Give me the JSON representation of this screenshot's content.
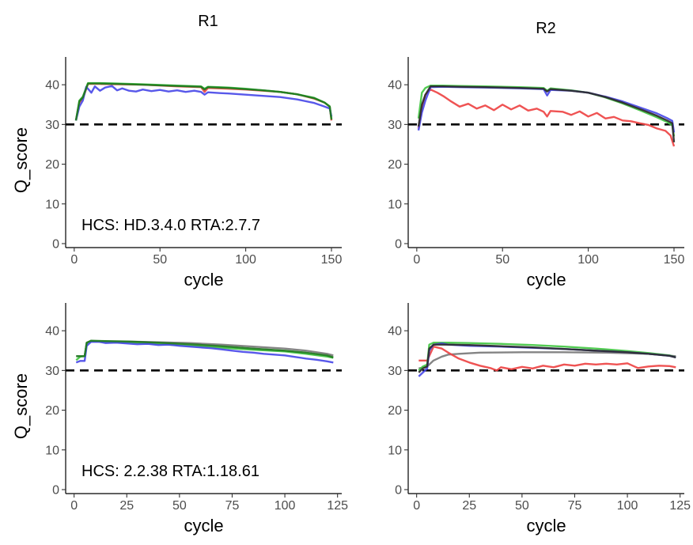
{
  "colors": {
    "A": "#ee4444",
    "C": "#4a4ae8",
    "G": "#2d2d2d",
    "T": "#43c743",
    "dark_green": "#1f7a1f",
    "gray": "#7a7a7a",
    "threshold": "#000000"
  },
  "column_titles": [
    "R1",
    "R2"
  ],
  "threshold": 30,
  "chart_data": [
    {
      "type": "line",
      "panel": "top-left",
      "title": "",
      "xlabel": "cycle",
      "ylabel": "Q_score",
      "xlim": [
        -5,
        156
      ],
      "ylim": [
        -1,
        47
      ],
      "xticks": [
        0,
        50,
        100,
        150
      ],
      "yticks": [
        0,
        10,
        20,
        30,
        40
      ],
      "annotation": "HCS: HD.3.4.0 RTA:2.7.7",
      "grid": false,
      "series": [
        {
          "color_key": "A",
          "x": [
            1,
            3,
            5,
            8,
            15,
            25,
            40,
            60,
            74,
            76,
            78,
            90,
            100,
            110,
            120,
            130,
            140,
            146,
            149,
            150
          ],
          "values": [
            31,
            35.5,
            36.5,
            40.2,
            40.2,
            40.1,
            40,
            39.6,
            39.4,
            38.2,
            39.2,
            39,
            38.8,
            38.5,
            38.2,
            37.6,
            36.5,
            35.5,
            34.5,
            31
          ]
        },
        {
          "color_key": "T",
          "x": [
            1,
            3,
            5,
            8,
            15,
            25,
            40,
            60,
            74,
            76,
            78,
            90,
            100,
            110,
            120,
            130,
            140,
            146,
            149,
            150
          ],
          "values": [
            31,
            36,
            37,
            40.4,
            40.4,
            40.3,
            40.1,
            39.8,
            39.6,
            39,
            39.5,
            39.3,
            39,
            38.6,
            38.2,
            37.6,
            36.7,
            35.5,
            34.6,
            31.5
          ]
        },
        {
          "color_key": "C",
          "x": [
            1,
            3,
            5,
            7,
            10,
            12,
            15,
            18,
            22,
            25,
            28,
            32,
            36,
            40,
            45,
            50,
            55,
            60,
            65,
            70,
            74,
            76,
            78,
            85,
            90,
            100,
            110,
            120,
            130,
            140,
            146,
            149,
            150
          ],
          "values": [
            31,
            34.5,
            36,
            39.5,
            38,
            39.6,
            38.5,
            39.3,
            39.7,
            38.6,
            39.1,
            38.5,
            38.3,
            38.8,
            38.4,
            38.7,
            38.3,
            38.6,
            38.2,
            38.5,
            38.2,
            37.5,
            38.1,
            37.9,
            37.8,
            37.5,
            37.2,
            36.9,
            36.3,
            35.4,
            34.5,
            34,
            32
          ]
        },
        {
          "color_key": "dark_green",
          "x": [
            1,
            3,
            5,
            8,
            15,
            25,
            40,
            60,
            74,
            76,
            78,
            90,
            100,
            110,
            120,
            130,
            140,
            146,
            149,
            150
          ],
          "values": [
            31,
            35.8,
            36.8,
            40.3,
            40.3,
            40.2,
            40,
            39.7,
            39.5,
            38.8,
            39.4,
            39.2,
            38.9,
            38.6,
            38.2,
            37.6,
            36.6,
            35.5,
            34.5,
            31.2
          ]
        }
      ]
    },
    {
      "type": "line",
      "panel": "top-right",
      "title": "",
      "xlabel": "cycle",
      "ylabel": "",
      "xlim": [
        -5,
        156
      ],
      "ylim": [
        -1,
        47
      ],
      "xticks": [
        0,
        50,
        100,
        150
      ],
      "yticks": [
        0,
        10,
        20,
        30,
        40
      ],
      "grid": false,
      "series": [
        {
          "color_key": "A",
          "x": [
            1,
            3,
            5,
            8,
            12,
            16,
            20,
            25,
            30,
            35,
            40,
            45,
            50,
            55,
            60,
            65,
            70,
            74,
            76,
            78,
            85,
            90,
            95,
            100,
            105,
            110,
            115,
            120,
            125,
            130,
            135,
            140,
            145,
            148,
            150
          ],
          "values": [
            29,
            34,
            37.5,
            38.8,
            38,
            37,
            35.8,
            34.5,
            35.2,
            34,
            34.8,
            33.6,
            35,
            33.8,
            34.8,
            33.5,
            34,
            33.2,
            32,
            33.4,
            33.2,
            32.4,
            33.3,
            32,
            32.9,
            31.5,
            31.9,
            31,
            30.8,
            30.3,
            29.9,
            29,
            28.4,
            27.2,
            24.5
          ]
        },
        {
          "color_key": "T",
          "x": [
            1,
            3,
            5,
            8,
            15,
            25,
            40,
            60,
            74,
            76,
            78,
            90,
            100,
            110,
            120,
            130,
            140,
            146,
            149,
            150
          ],
          "values": [
            31.5,
            38,
            39.2,
            39.8,
            39.8,
            39.7,
            39.6,
            39.4,
            39.2,
            38.5,
            39.1,
            38.6,
            38,
            36.8,
            35.3,
            33.6,
            31.8,
            30.6,
            29.8,
            27
          ]
        },
        {
          "color_key": "C",
          "x": [
            1,
            3,
            5,
            8,
            15,
            25,
            40,
            60,
            74,
            76,
            78,
            90,
            100,
            110,
            120,
            130,
            140,
            146,
            149,
            150
          ],
          "values": [
            28.5,
            33,
            36,
            39.4,
            39.5,
            39.4,
            39.3,
            39.1,
            38.9,
            37.3,
            38.7,
            38.5,
            38,
            37,
            35.8,
            34.3,
            32.8,
            31.6,
            30.9,
            28
          ]
        },
        {
          "color_key": "G",
          "x": [
            1,
            3,
            5,
            8,
            15,
            25,
            40,
            60,
            74,
            76,
            78,
            90,
            100,
            110,
            120,
            130,
            140,
            146,
            149,
            150
          ],
          "values": [
            29.5,
            35,
            37.5,
            39.6,
            39.6,
            39.5,
            39.4,
            39.2,
            39,
            38.3,
            38.9,
            38.5,
            38,
            36.9,
            35.5,
            33.9,
            32.2,
            31,
            30.3,
            25.5
          ]
        }
      ]
    },
    {
      "type": "line",
      "panel": "bottom-left",
      "title": "",
      "xlabel": "cycle",
      "ylabel": "Q_score",
      "xlim": [
        -4,
        127
      ],
      "ylim": [
        -1,
        47
      ],
      "xticks": [
        0,
        25,
        50,
        75,
        100,
        125
      ],
      "yticks": [
        0,
        10,
        20,
        30,
        40
      ],
      "annotation": "HCS: 2.2.38 RTA:1.18.61",
      "grid": false,
      "series": [
        {
          "color_key": "gray",
          "x": [
            1,
            3,
            5,
            6,
            8,
            15,
            25,
            40,
            55,
            70,
            85,
            100,
            110,
            120,
            123
          ],
          "values": [
            33.6,
            33.6,
            33.6,
            37,
            37.3,
            37.3,
            37.3,
            37.1,
            36.9,
            36.5,
            36,
            35.5,
            35,
            34.2,
            33.8
          ]
        },
        {
          "color_key": "T",
          "x": [
            1,
            3,
            5,
            6,
            8,
            15,
            25,
            40,
            55,
            70,
            85,
            100,
            110,
            120,
            123
          ],
          "values": [
            32.6,
            33.5,
            33.6,
            36.8,
            37.4,
            37.2,
            37,
            36.6,
            36.2,
            35.7,
            35.2,
            34.8,
            34.2,
            33.5,
            33.2
          ]
        },
        {
          "color_key": "C",
          "x": [
            1,
            3,
            5,
            6,
            8,
            12,
            15,
            20,
            25,
            30,
            35,
            40,
            45,
            50,
            55,
            60,
            65,
            70,
            75,
            80,
            85,
            90,
            95,
            100,
            105,
            110,
            115,
            120,
            123
          ],
          "values": [
            32,
            32.4,
            32.4,
            36.2,
            37.2,
            37.2,
            36.9,
            37,
            36.8,
            36.6,
            36.7,
            36.4,
            36.5,
            36.2,
            36,
            35.8,
            35.6,
            35.3,
            35,
            34.7,
            34.5,
            34.2,
            34,
            33.8,
            33.4,
            33,
            32.7,
            32.3,
            32
          ]
        },
        {
          "color_key": "dark_green",
          "x": [
            1,
            3,
            5,
            6,
            8,
            15,
            25,
            40,
            55,
            70,
            85,
            100,
            110,
            120,
            123
          ],
          "values": [
            33.6,
            33.6,
            33.6,
            37,
            37.5,
            37.4,
            37.3,
            37,
            36.6,
            36.1,
            35.5,
            35,
            34.5,
            33.8,
            33.3
          ]
        }
      ]
    },
    {
      "type": "line",
      "panel": "bottom-right",
      "title": "",
      "xlabel": "cycle",
      "ylabel": "",
      "xlim": [
        -4,
        127
      ],
      "ylim": [
        -1,
        47
      ],
      "xticks": [
        0,
        25,
        50,
        75,
        100,
        125
      ],
      "yticks": [
        0,
        10,
        20,
        30,
        40
      ],
      "grid": false,
      "series": [
        {
          "color_key": "gray",
          "x": [
            1,
            5,
            8,
            12,
            15,
            20,
            30,
            50,
            70,
            90,
            110,
            123
          ],
          "values": [
            30.5,
            31,
            32.5,
            33.5,
            34,
            34.2,
            34.5,
            34.6,
            34.6,
            34.5,
            34.2,
            33.6
          ]
        },
        {
          "color_key": "A",
          "x": [
            1,
            3,
            5,
            8,
            12,
            15,
            20,
            25,
            30,
            35,
            38,
            40,
            45,
            50,
            55,
            60,
            65,
            70,
            75,
            80,
            85,
            90,
            95,
            100,
            105,
            110,
            115,
            120,
            123
          ],
          "values": [
            32.5,
            32.5,
            32.5,
            36,
            35.5,
            34.5,
            33,
            32,
            31.2,
            30.6,
            30,
            30.8,
            30.3,
            30.9,
            30.5,
            31.2,
            30.8,
            31.5,
            31.2,
            31.7,
            31.5,
            31.7,
            31.5,
            31.8,
            30.6,
            31,
            31.2,
            31.1,
            30.8
          ]
        },
        {
          "color_key": "T",
          "x": [
            1,
            3,
            5,
            6,
            8,
            15,
            25,
            40,
            55,
            70,
            85,
            100,
            110,
            120,
            123
          ],
          "values": [
            30,
            31,
            31.5,
            36.5,
            37,
            37,
            36.9,
            36.7,
            36.4,
            36,
            35.5,
            34.9,
            34.4,
            33.8,
            33.3
          ]
        },
        {
          "color_key": "C",
          "x": [
            1,
            3,
            5,
            6,
            8,
            12,
            15,
            25,
            40,
            55,
            70,
            85,
            100,
            110,
            120,
            123
          ],
          "values": [
            28.5,
            29.5,
            30.5,
            35,
            36.5,
            36.8,
            36.5,
            36.2,
            36,
            35.7,
            35.4,
            35,
            34.6,
            34.2,
            33.7,
            33.3
          ]
        },
        {
          "color_key": "G",
          "x": [
            1,
            3,
            5,
            6,
            8,
            15,
            25,
            40,
            55,
            70,
            85,
            100,
            110,
            120,
            123
          ],
          "values": [
            29.5,
            30.5,
            31,
            35.5,
            36.5,
            36.5,
            36.4,
            36.1,
            35.8,
            35.4,
            35,
            34.6,
            34.2,
            33.7,
            33.3
          ]
        }
      ]
    }
  ]
}
